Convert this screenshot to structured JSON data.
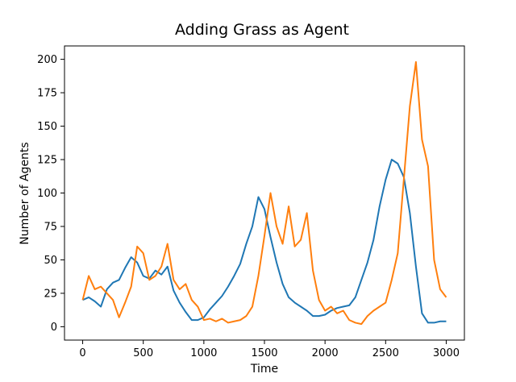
{
  "chart_data": {
    "type": "line",
    "title": "Adding Grass as Agent",
    "xlabel": "Time",
    "ylabel": "Number of Agents",
    "xlim": [
      -150,
      3150
    ],
    "ylim": [
      -10,
      210
    ],
    "xticks": [
      0,
      500,
      1000,
      1500,
      2000,
      2500,
      3000
    ],
    "yticks": [
      0,
      25,
      50,
      75,
      100,
      125,
      150,
      175,
      200
    ],
    "grid": false,
    "legend": "none",
    "series": [
      {
        "color": "#1f77b4",
        "x": [
          0,
          50,
          100,
          150,
          200,
          250,
          300,
          350,
          400,
          450,
          500,
          550,
          600,
          650,
          700,
          750,
          800,
          850,
          900,
          950,
          1000,
          1050,
          1100,
          1150,
          1200,
          1250,
          1300,
          1350,
          1400,
          1450,
          1500,
          1550,
          1600,
          1650,
          1700,
          1750,
          1800,
          1850,
          1900,
          1950,
          2000,
          2050,
          2100,
          2150,
          2200,
          2250,
          2300,
          2350,
          2400,
          2450,
          2500,
          2550,
          2600,
          2650,
          2700,
          2750,
          2800,
          2850,
          2900,
          2950,
          3000
        ],
        "y": [
          20,
          22,
          19,
          15,
          28,
          33,
          35,
          44,
          52,
          48,
          38,
          36,
          42,
          39,
          45,
          27,
          18,
          11,
          5,
          5,
          7,
          13,
          18,
          23,
          30,
          38,
          47,
          62,
          75,
          97,
          88,
          67,
          48,
          32,
          22,
          18,
          15,
          12,
          8,
          8,
          9,
          12,
          14,
          15,
          16,
          22,
          35,
          48,
          65,
          90,
          110,
          125,
          122,
          112,
          85,
          45,
          10,
          3,
          3,
          4,
          4
        ]
      },
      {
        "color": "#ff7f0e",
        "x": [
          0,
          50,
          100,
          150,
          200,
          250,
          300,
          350,
          400,
          450,
          500,
          550,
          600,
          650,
          700,
          750,
          800,
          850,
          900,
          950,
          1000,
          1050,
          1100,
          1150,
          1200,
          1250,
          1300,
          1350,
          1400,
          1450,
          1500,
          1550,
          1600,
          1650,
          1700,
          1750,
          1800,
          1850,
          1900,
          1950,
          2000,
          2050,
          2100,
          2150,
          2200,
          2250,
          2300,
          2350,
          2400,
          2450,
          2500,
          2550,
          2600,
          2650,
          2700,
          2750,
          2800,
          2850,
          2900,
          2950,
          3000
        ],
        "y": [
          20,
          38,
          28,
          30,
          25,
          20,
          7,
          18,
          30,
          60,
          55,
          35,
          38,
          45,
          62,
          35,
          28,
          32,
          20,
          15,
          5,
          6,
          4,
          6,
          3,
          4,
          5,
          8,
          15,
          38,
          68,
          100,
          75,
          62,
          90,
          60,
          65,
          85,
          42,
          20,
          12,
          15,
          10,
          12,
          5,
          3,
          2,
          8,
          12,
          15,
          18,
          35,
          55,
          110,
          165,
          198,
          140,
          120,
          50,
          28,
          22
        ]
      }
    ]
  }
}
